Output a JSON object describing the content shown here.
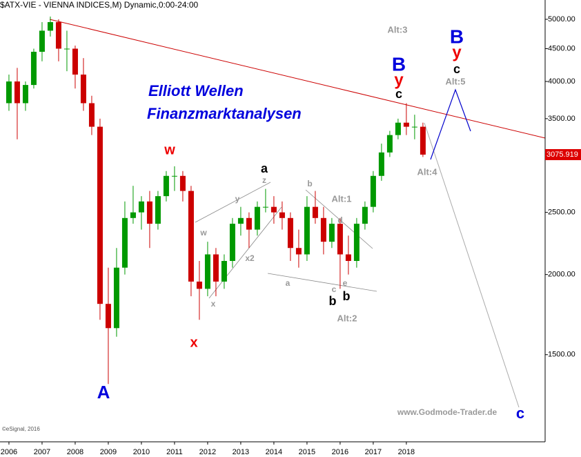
{
  "chart_data": {
    "type": "candlestick",
    "title": "($ATX-VIE - VIENNA INDICES,M) Dynamic,0:00-24:00",
    "log_scale": true,
    "up_color": "#009900",
    "down_color": "#cc0000",
    "x": [
      2006.0,
      2006.25,
      2006.5,
      2006.75,
      2007.0,
      2007.25,
      2007.5,
      2007.75,
      2008.0,
      2008.25,
      2008.5,
      2008.75,
      2009.0,
      2009.25,
      2009.5,
      2009.75,
      2010.0,
      2010.25,
      2010.5,
      2010.75,
      2011.0,
      2011.25,
      2011.5,
      2011.75,
      2012.0,
      2012.25,
      2012.5,
      2012.75,
      2013.0,
      2013.25,
      2013.5,
      2013.75,
      2014.0,
      2014.25,
      2014.5,
      2014.75,
      2015.0,
      2015.25,
      2015.5,
      2015.75,
      2016.0,
      2016.25,
      2016.5,
      2016.75,
      2017.0,
      2017.25,
      2017.5,
      2017.75,
      2018.0,
      2018.25,
      2018.5
    ],
    "open": [
      3700,
      4000,
      3700,
      3950,
      4450,
      4800,
      4950,
      4500,
      4500,
      4100,
      3700,
      3400,
      1800,
      1650,
      2050,
      2450,
      2500,
      2600,
      2400,
      2650,
      2850,
      2850,
      2700,
      1950,
      1900,
      2150,
      1950,
      2100,
      2400,
      2450,
      2350,
      2550,
      2550,
      2500,
      2450,
      2200,
      2150,
      2550,
      2450,
      2250,
      2400,
      2150,
      2100,
      2400,
      2550,
      2850,
      3100,
      3300,
      3450,
      3400,
      3400
    ],
    "high": [
      4100,
      4200,
      4000,
      4500,
      4950,
      5050,
      5000,
      4800,
      4550,
      4350,
      3800,
      3500,
      2050,
      2200,
      2600,
      2750,
      2650,
      2700,
      2700,
      2900,
      2950,
      2900,
      2750,
      2100,
      2250,
      2200,
      2150,
      2450,
      2550,
      2500,
      2600,
      2720,
      2650,
      2600,
      2500,
      2350,
      2650,
      2700,
      2550,
      2450,
      2450,
      2300,
      2450,
      2600,
      2900,
      3200,
      3350,
      3500,
      3700,
      3550,
      3450
    ],
    "low": [
      3600,
      3250,
      3600,
      3900,
      4300,
      4700,
      4300,
      4150,
      3900,
      3600,
      3300,
      1700,
      1350,
      1600,
      2000,
      2400,
      2350,
      2200,
      2350,
      2600,
      2700,
      2600,
      1850,
      1700,
      1850,
      1850,
      1900,
      2050,
      2300,
      2200,
      2300,
      2500,
      2400,
      2350,
      2100,
      2050,
      2100,
      2400,
      2150,
      2200,
      1900,
      2000,
      2050,
      2350,
      2500,
      2800,
      3050,
      3250,
      3300,
      3250,
      3050
    ],
    "close": [
      4000,
      3700,
      3950,
      4450,
      4800,
      4950,
      4500,
      4500,
      4100,
      3700,
      3400,
      1800,
      1650,
      2050,
      2450,
      2500,
      2600,
      2400,
      2650,
      2850,
      2850,
      2700,
      1950,
      1900,
      2150,
      1950,
      2100,
      2400,
      2450,
      2350,
      2550,
      2550,
      2500,
      2450,
      2200,
      2150,
      2550,
      2450,
      2250,
      2400,
      2150,
      2100,
      2400,
      2550,
      2850,
      3100,
      3300,
      3450,
      3400,
      3400,
      3076
    ],
    "last_price_label": "3075.919",
    "xlim": [
      2005.73,
      2022.19
    ],
    "xticks": [
      2006,
      2007,
      2008,
      2009,
      2010,
      2011,
      2012,
      2013,
      2014,
      2015,
      2016,
      2017,
      2018
    ],
    "ylim": [
      1097,
      5359
    ],
    "yticks": [
      {
        "value": 1500,
        "label": "1500.00"
      },
      {
        "value": 2000,
        "label": "2000.00"
      },
      {
        "value": 2500,
        "label": "2500.00"
      },
      {
        "value": 3500,
        "label": "3500.00"
      },
      {
        "value": 4000,
        "label": "4000.00"
      },
      {
        "value": 4500,
        "label": "4500.00"
      },
      {
        "value": 5000,
        "label": "5000.00"
      }
    ],
    "annotations": [
      {
        "text": "Elliott Wellen",
        "color": "#0000dd"
      },
      {
        "text": "Finanzmarktanalysen",
        "color": "#0000dd"
      },
      {
        "text": "w",
        "color": "#ee0000"
      },
      {
        "text": "x",
        "color": "#ee0000"
      },
      {
        "text": "A",
        "color": "#0000dd"
      },
      {
        "text": "a",
        "color": "#000000"
      },
      {
        "text": "z",
        "color": "#999999"
      },
      {
        "text": "y",
        "color": "#999999"
      },
      {
        "text": "w",
        "color": "#999999"
      },
      {
        "text": "x2",
        "color": "#999999"
      },
      {
        "text": "x",
        "color": "#999999"
      },
      {
        "text": "b",
        "color": "#999999"
      },
      {
        "text": "Alt:1",
        "color": "#999999"
      },
      {
        "text": "d",
        "color": "#999999"
      },
      {
        "text": "a",
        "color": "#999999"
      },
      {
        "text": "c",
        "color": "#999999"
      },
      {
        "text": "e",
        "color": "#999999"
      },
      {
        "text": "b",
        "color": "#000000"
      },
      {
        "text": "b",
        "color": "#000000"
      },
      {
        "text": "Alt:2",
        "color": "#999999"
      },
      {
        "text": "Alt:3",
        "color": "#999999"
      },
      {
        "text": "B",
        "color": "#0000dd"
      },
      {
        "text": "y",
        "color": "#ee0000"
      },
      {
        "text": "c",
        "color": "#000000"
      },
      {
        "text": "B",
        "color": "#0000dd"
      },
      {
        "text": "y",
        "color": "#ee0000"
      },
      {
        "text": "c",
        "color": "#000000"
      },
      {
        "text": "Alt:5",
        "color": "#999999"
      },
      {
        "text": "Alt:4",
        "color": "#999999"
      },
      {
        "text": "www.Godmode-Trader.de",
        "color": "#999999"
      },
      {
        "text": "c",
        "color": "#0000dd"
      },
      {
        "text": "©eSignal, 2016",
        "color": "#555555"
      }
    ]
  }
}
